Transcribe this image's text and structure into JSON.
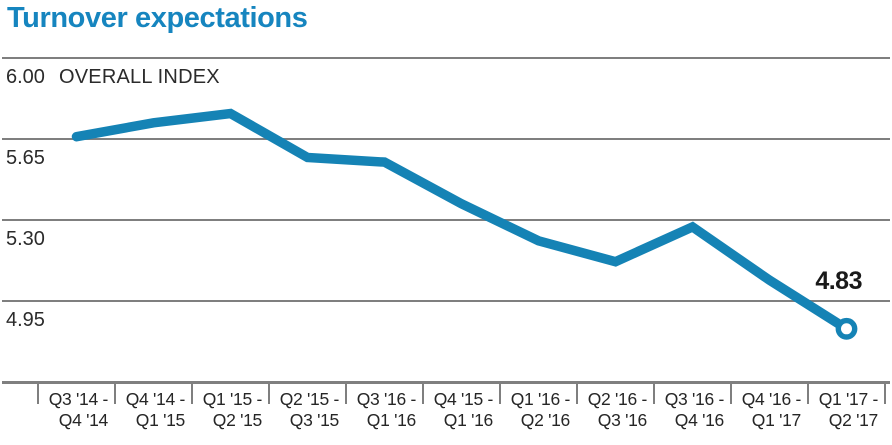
{
  "chart_data": {
    "type": "line",
    "title": "Turnover expectations",
    "title_color": "#1685bf",
    "series_label": "OVERALL INDEX",
    "line_color": "#1583b5",
    "grid_color": "#7f7f7f",
    "background": "#ffffff",
    "grid": "horizontal",
    "legend_position": "none",
    "ylim": [
      4.72,
      6.05
    ],
    "yticks": [
      {
        "label": "6.00",
        "value": 6.0
      },
      {
        "label": "5.65",
        "value": 5.65
      },
      {
        "label": "5.30",
        "value": 5.3
      },
      {
        "label": "4.95",
        "value": 4.95
      }
    ],
    "x_categories": [
      {
        "line1": "Q3 '14 -",
        "line2": "Q4 '14"
      },
      {
        "line1": "Q4 '14 -",
        "line2": "Q1 '15"
      },
      {
        "line1": "Q1 '15 -",
        "line2": "Q2 '15"
      },
      {
        "line1": "Q2 '15 -",
        "line2": "Q3 '15"
      },
      {
        "line1": "Q3 '16 -",
        "line2": "Q1 '16"
      },
      {
        "line1": "Q4 '15 -",
        "line2": "Q1 '16"
      },
      {
        "line1": "Q1 '16 -",
        "line2": "Q2 '16"
      },
      {
        "line1": "Q2 '16 -",
        "line2": "Q3 '16"
      },
      {
        "line1": "Q3 '16 -",
        "line2": "Q4 '16"
      },
      {
        "line1": "Q4 '16 -",
        "line2": "Q1 '17"
      },
      {
        "line1": "Q1 '17 -",
        "line2": "Q2 '17"
      }
    ],
    "values": [
      5.66,
      5.72,
      5.76,
      5.57,
      5.55,
      5.37,
      5.21,
      5.12,
      5.27,
      5.04,
      4.83
    ],
    "end_label": "4.83"
  }
}
